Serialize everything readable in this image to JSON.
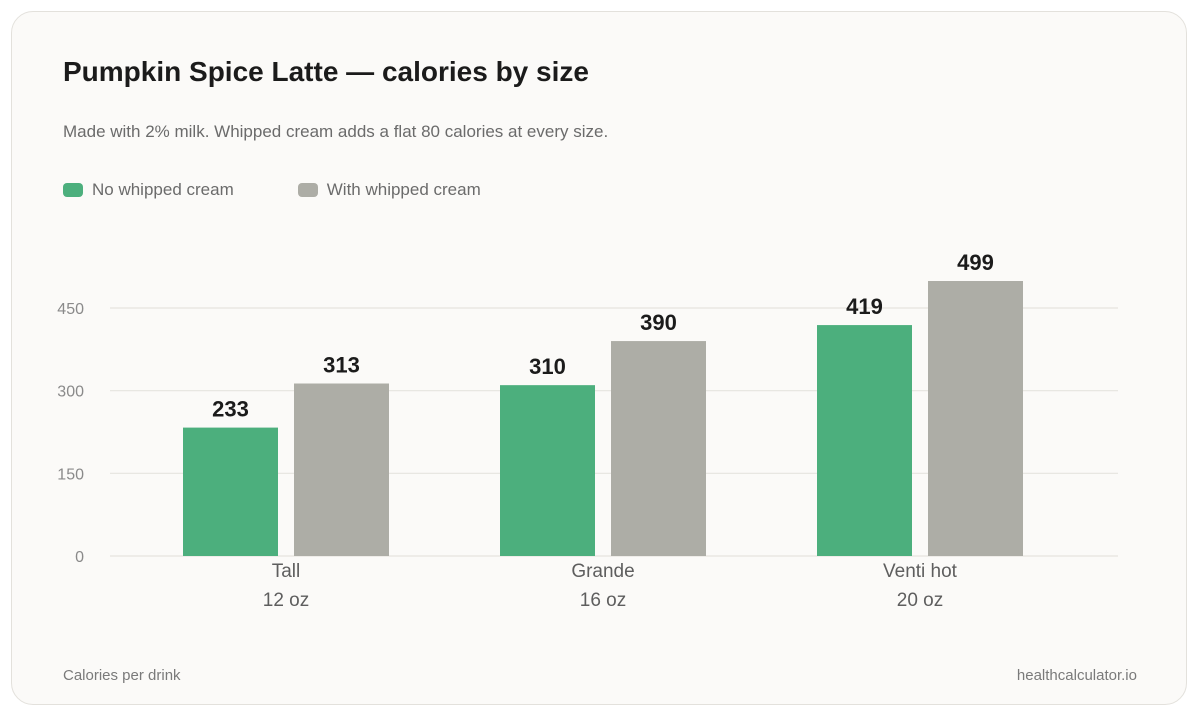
{
  "chart_data": {
    "type": "bar",
    "title": "Pumpkin Spice Latte — calories by size",
    "subtitle": "Made with 2% milk. Whipped cream adds a flat 80 calories at every size.",
    "categories": [
      "Tall",
      "Grande",
      "Venti hot"
    ],
    "category_sublabels": [
      "12 oz",
      "16 oz",
      "20 oz"
    ],
    "series": [
      {
        "name": "No whipped cream",
        "color": "#4caf7d",
        "values": [
          233,
          310,
          419
        ]
      },
      {
        "name": "With whipped cream",
        "color": "#adada6",
        "values": [
          313,
          390,
          499
        ]
      }
    ],
    "yticks": [
      0,
      150,
      300,
      450
    ],
    "ylim": [
      0,
      540
    ],
    "grid": true,
    "legend": "top-left",
    "data_labels": true
  },
  "footer": {
    "note": "Calories per drink",
    "source": "healthcalculator.io"
  }
}
